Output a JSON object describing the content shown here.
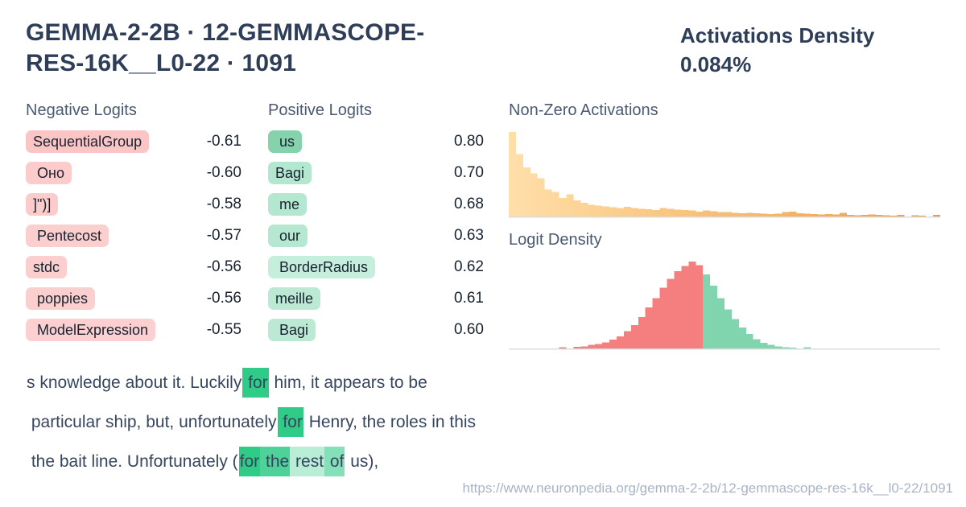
{
  "header": {
    "title": "GEMMA-2-2B · 12-GEMMASCOPE-RES-16K__L0-22 · 1091",
    "density_label": "Activations Density",
    "density_value": "0.084%"
  },
  "colors": {
    "title": "#2f3e58",
    "heading": "#4a5a72",
    "value-text": "#18222f",
    "sample-text": "#36465f",
    "url": "#a9b4c6",
    "highlight-strong-green": "#2fcb87",
    "negative-badge-pink": "#fbcaca",
    "positive-badge-mint": "#b6e8d1",
    "hist-orange-light": "#ffdfa9",
    "hist-orange-dark": "#f29a3d",
    "hist-red": "#f57f7f",
    "hist-green": "#80d5ae",
    "baseline": "#d8dde4"
  },
  "negative_logits": {
    "heading": "Negative Logits",
    "items": [
      {
        "token": "SequentialGroup",
        "value": "-0.61",
        "bg": "#fbc5c6"
      },
      {
        "token": " Оно",
        "value": "-0.60",
        "bg": "#fccccc"
      },
      {
        "token": "]\")]",
        "value": "-0.58",
        "bg": "#fccccc"
      },
      {
        "token": " Pentecost",
        "value": "-0.57",
        "bg": "#fccfcf"
      },
      {
        "token": "stdc",
        "value": "-0.56",
        "bg": "#fccfcf"
      },
      {
        "token": " poppies",
        "value": "-0.56",
        "bg": "#fccfcf"
      },
      {
        "token": " ModelExpression",
        "value": "-0.55",
        "bg": "#fcd0d0"
      }
    ]
  },
  "positive_logits": {
    "heading": "Positive Logits",
    "items": [
      {
        "token": " us",
        "value": "0.80",
        "bg": "#85d3ad"
      },
      {
        "token": "Bagi",
        "value": "0.70",
        "bg": "#b4e7d0"
      },
      {
        "token": " me",
        "value": "0.68",
        "bg": "#b4e7d0"
      },
      {
        "token": " our",
        "value": "0.63",
        "bg": "#b6e8d1"
      },
      {
        "token": " BorderRadius",
        "value": "0.62",
        "bg": "#c6eedd"
      },
      {
        "token": "meille",
        "value": "0.61",
        "bg": "#bce9d4"
      },
      {
        "token": " Bagi",
        "value": "0.60",
        "bg": "#bce9d4"
      }
    ]
  },
  "chart_data": [
    {
      "type": "bar",
      "title": "Non-Zero Activations",
      "xlabel": "",
      "ylabel": "",
      "ylim": [
        0,
        1
      ],
      "grid": false,
      "legend": false,
      "note": "unlabeled decaying histogram of non-zero activation values, relative frequency of max bar",
      "bins_total": 60,
      "color_start": "#ffdfa9",
      "color_end": "#f29a3d",
      "baseline_color": "#d8dde4",
      "values": [
        1.0,
        0.74,
        0.58,
        0.51,
        0.45,
        0.32,
        0.29,
        0.22,
        0.26,
        0.19,
        0.16,
        0.14,
        0.13,
        0.12,
        0.11,
        0.1,
        0.115,
        0.1,
        0.09,
        0.085,
        0.075,
        0.1,
        0.09,
        0.08,
        0.075,
        0.07,
        0.055,
        0.07,
        0.06,
        0.05,
        0.05,
        0.045,
        0.04,
        0.045,
        0.04,
        0.035,
        0.03,
        0.035,
        0.05,
        0.055,
        0.04,
        0.035,
        0.03,
        0.025,
        0.03,
        0.025,
        0.045,
        0.02,
        0.015,
        0.02,
        0.025,
        0.02,
        0.015,
        0.01,
        0.02,
        0,
        0.015,
        0.01,
        0,
        0.02
      ]
    },
    {
      "type": "bar",
      "title": "Logit Density",
      "xlabel": "",
      "ylabel": "",
      "ylim": [
        0,
        1
      ],
      "grid": false,
      "legend": false,
      "note": "bell-shaped histogram; negative-logit side red, positive-logit side green; relative frequency of max bar",
      "bins_total": 60,
      "bins_offset": 7,
      "baseline_color": "#d8dde4",
      "series": [
        {
          "name": "negative",
          "color": "#f57f7f",
          "values": [
            0.012,
            0,
            0.018,
            0.025,
            0.04,
            0.05,
            0.07,
            0.1,
            0.14,
            0.2,
            0.27,
            0.36,
            0.47,
            0.58,
            0.7,
            0.8,
            0.89,
            0.95,
            1.0,
            0.96
          ]
        },
        {
          "name": "positive",
          "color": "#80d5ae",
          "values": [
            0.85,
            0.72,
            0.58,
            0.45,
            0.34,
            0.24,
            0.165,
            0.105,
            0.065,
            0.04,
            0.025,
            0.015,
            0.008,
            0,
            0.012
          ]
        }
      ]
    }
  ],
  "samples": [
    {
      "tokens": [
        {
          "t": "s knowledge about it. Luckily",
          "bg": null
        },
        {
          "t": " for",
          "bg": "#2fcb87"
        },
        {
          "t": " him, it appears to be",
          "bg": null
        }
      ]
    },
    {
      "tokens": [
        {
          "t": " particular ship, but, unfortunately",
          "bg": null
        },
        {
          "t": " for",
          "bg": "#2fcb87"
        },
        {
          "t": " Henry, the roles in this",
          "bg": null
        }
      ]
    },
    {
      "tokens": [
        {
          "t": " the bait line. Unfortunately (",
          "bg": null
        },
        {
          "t": "for",
          "bg": "#2fcb87"
        },
        {
          "t": " the",
          "bg": "#4ed29a"
        },
        {
          "t": " rest",
          "bg": "#b9edd6"
        },
        {
          "t": " of",
          "bg": "#83e0b8"
        },
        {
          "t": " us),",
          "bg": null
        }
      ]
    }
  ],
  "footer": {
    "url": "https://www.neuronpedia.org/gemma-2-2b/12-gemmascope-res-16k__l0-22/1091"
  }
}
